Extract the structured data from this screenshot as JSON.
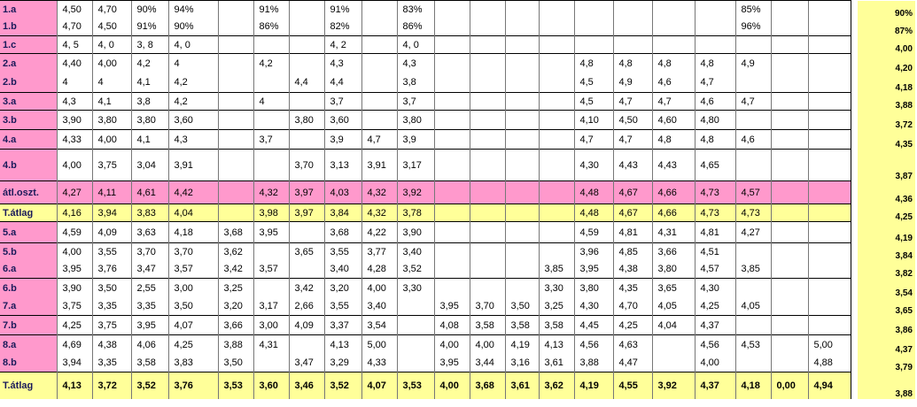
{
  "table": {
    "rows": [
      {
        "label": "1.a",
        "cells": [
          "4,50",
          "4,70",
          "90%",
          "94%",
          null,
          "91%",
          null,
          "91%",
          null,
          "83%",
          null,
          null,
          null,
          null,
          null,
          null,
          null,
          null,
          "85%",
          null,
          null
        ],
        "total": "90%"
      },
      {
        "label": "1.b",
        "cells": [
          "4,70",
          "4,50",
          "91%",
          "90%",
          null,
          "86%",
          null,
          "82%",
          null,
          "86%",
          null,
          null,
          null,
          null,
          null,
          null,
          null,
          null,
          "96%",
          null,
          null
        ],
        "total": "87%"
      },
      {
        "label": "1.c",
        "cells": [
          "4, 5",
          "4, 0",
          "3, 8",
          "4, 0",
          null,
          null,
          null,
          "4, 2",
          null,
          "4, 0",
          null,
          null,
          null,
          null,
          null,
          null,
          null,
          null,
          null,
          null,
          null
        ],
        "total": "4,00"
      },
      {
        "label": "2.a",
        "cells": [
          "4,40",
          "4,00",
          "4,2",
          "4",
          null,
          "4,2",
          null,
          "4,3",
          null,
          "4,3",
          null,
          null,
          null,
          null,
          "4,8",
          "4,8",
          "4,8",
          "4,8",
          "4,9",
          null,
          null
        ],
        "total": "4,20"
      },
      {
        "label": "2.b",
        "cells": [
          "4",
          "4",
          "4,1",
          "4,2",
          null,
          null,
          "4,4",
          "4,4",
          null,
          "3,8",
          null,
          null,
          null,
          null,
          "4,5",
          "4,9",
          "4,6",
          "4,7",
          null,
          null,
          null
        ],
        "total": "4,18"
      },
      {
        "label": "3.a",
        "cells": [
          "4,3",
          "4,1",
          "3,8",
          "4,2",
          null,
          "4",
          null,
          "3,7",
          null,
          "3,7",
          null,
          null,
          null,
          null,
          "4,5",
          "4,7",
          "4,7",
          "4,6",
          "4,7",
          null,
          null
        ],
        "total": "3,88"
      },
      {
        "label": "3.b",
        "cells": [
          "3,90",
          "3,80",
          "3,80",
          "3,60",
          null,
          null,
          "3,80",
          "3,60",
          null,
          "3,80",
          null,
          null,
          null,
          null,
          "4,10",
          "4,50",
          "4,60",
          "4,80",
          null,
          null,
          null
        ],
        "total": "3,72"
      },
      {
        "label": "4.a",
        "cells": [
          "4,33",
          "4,00",
          "4,1",
          "4,3",
          null,
          "3,7",
          null,
          "3,9",
          "4,7",
          "3,9",
          null,
          null,
          null,
          null,
          "4,7",
          "4,7",
          "4,8",
          "4,8",
          "4,6",
          null,
          null
        ],
        "total": "4,35"
      },
      {
        "label": "4.b",
        "cells": [
          "4,00",
          "3,75",
          "3,04",
          "3,91",
          null,
          null,
          "3,70",
          "3,13",
          "3,91",
          "3,17",
          null,
          null,
          null,
          null,
          "4,30",
          "4,43",
          "4,43",
          "4,65",
          null,
          null,
          null
        ],
        "total": "3,87"
      },
      {
        "label": "átl.oszt.",
        "cells": [
          "4,27",
          "4,11",
          "4,61",
          "4,42",
          null,
          "4,32",
          "3,97",
          "4,03",
          "4,32",
          "3,92",
          null,
          null,
          null,
          null,
          "4,48",
          "4,67",
          "4,66",
          "4,73",
          "4,57",
          null,
          null
        ],
        "total": "4,36"
      },
      {
        "label": "T.átlag",
        "cells": [
          "4,16",
          "3,94",
          "3,83",
          "4,04",
          null,
          "3,98",
          "3,97",
          "3,84",
          "4,32",
          "3,78",
          null,
          null,
          null,
          null,
          "4,48",
          "4,67",
          "4,66",
          "4,73",
          "4,73",
          null,
          null
        ],
        "total": "4,25"
      },
      {
        "label": "5.a",
        "cells": [
          "4,59",
          "4,09",
          "3,63",
          "4,18",
          "3,68",
          "3,95",
          null,
          "3,68",
          "4,22",
          "3,90",
          null,
          null,
          null,
          null,
          "4,59",
          "4,81",
          "4,31",
          "4,81",
          "4,27",
          null,
          null
        ],
        "total": "4,19"
      },
      {
        "label": "5.b",
        "cells": [
          "4,00",
          "3,55",
          "3,70",
          "3,70",
          "3,62",
          null,
          "3,65",
          "3,55",
          "3,77",
          "3,40",
          null,
          null,
          null,
          null,
          "3,96",
          "4,85",
          "3,66",
          "4,51",
          null,
          null,
          null
        ],
        "total": "3,84"
      },
      {
        "label": "6.a",
        "cells": [
          "3,95",
          "3,76",
          "3,47",
          "3,57",
          "3,42",
          "3,57",
          null,
          "3,40",
          "4,28",
          "3,52",
          null,
          null,
          null,
          "3,85",
          "3,95",
          "4,38",
          "3,80",
          "4,57",
          "3,85",
          null,
          null
        ],
        "total": "3,82"
      },
      {
        "label": "6.b",
        "cells": [
          "3,90",
          "3,50",
          "2,55",
          "3,00",
          "3,25",
          null,
          "3,42",
          "3,20",
          "4,00",
          "3,30",
          null,
          null,
          null,
          "3,30",
          "3,80",
          "4,35",
          "3,65",
          "4,30",
          null,
          null,
          null
        ],
        "total": "3,54"
      },
      {
        "label": "7.a",
        "cells": [
          "3,75",
          "3,35",
          "3,35",
          "3,50",
          "3,20",
          "3,17",
          "2,66",
          "3,55",
          "3,40",
          null,
          "3,95",
          "3,70",
          "3,50",
          "3,25",
          "4,30",
          "4,70",
          "4,05",
          "4,25",
          "4,05",
          null,
          null
        ],
        "total": "3,65"
      },
      {
        "label": "7.b",
        "cells": [
          "4,25",
          "3,75",
          "3,95",
          "4,07",
          "3,66",
          "3,00",
          "4,09",
          "3,37",
          "3,54",
          null,
          "4,08",
          "3,58",
          "3,58",
          "3,58",
          "4,45",
          "4,25",
          "4,04",
          "4,37",
          null,
          null,
          null
        ],
        "total": "3,86"
      },
      {
        "label": "8.a",
        "cells": [
          "4,69",
          "4,38",
          "4,06",
          "4,25",
          "3,88",
          "4,31",
          null,
          "4,13",
          "5,00",
          null,
          "4,00",
          "4,00",
          "4,19",
          "4,13",
          "4,56",
          "4,63",
          null,
          "4,56",
          "4,53",
          null,
          "5,00"
        ],
        "total": "4,37"
      },
      {
        "label": "8.b",
        "cells": [
          "3,94",
          "3,35",
          "3,58",
          "3,83",
          "3,50",
          null,
          "3,47",
          "3,29",
          "4,33",
          null,
          "3,95",
          "3,44",
          "3,16",
          "3,61",
          "3,88",
          "4,47",
          null,
          "4,00",
          null,
          null,
          "4,88"
        ],
        "total": "3,79"
      },
      {
        "label": "T.átlag",
        "cells": [
          "4,13",
          "3,72",
          "3,52",
          "3,76",
          "3,53",
          "3,60",
          "3,46",
          "3,52",
          "4,07",
          "3,53",
          "4,00",
          "3,68",
          "3,61",
          "3,62",
          "4,19",
          "4,55",
          "3,92",
          "4,37",
          "4,18",
          "0,00",
          "4,94"
        ],
        "total": "3,88"
      }
    ]
  }
}
